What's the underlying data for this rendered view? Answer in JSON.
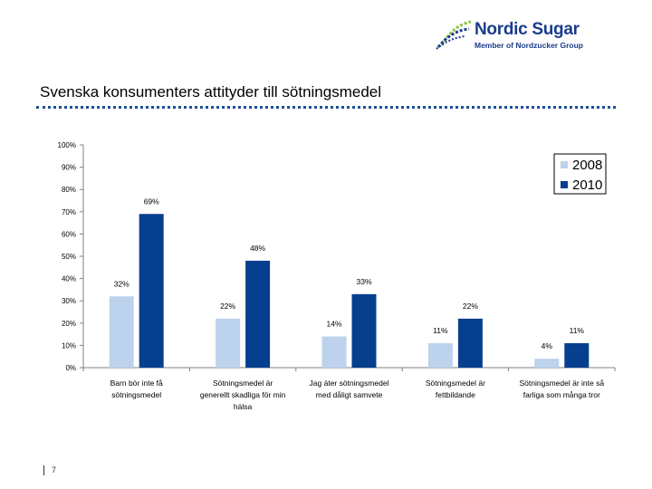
{
  "brand": {
    "name": "Nordic Sugar",
    "tagline": "Member of Nordzucker Group",
    "primary_color": "#1a3c8c",
    "accent_color": "#8cc63f"
  },
  "slide": {
    "title": "Svenska konsumenters attityder till sötningsmedel",
    "page_number": "7"
  },
  "chart_data": {
    "type": "bar",
    "title": "",
    "xlabel": "",
    "ylabel": "",
    "ylim": [
      0,
      100
    ],
    "y_ticks": [
      "0%",
      "10%",
      "20%",
      "30%",
      "40%",
      "50%",
      "60%",
      "70%",
      "80%",
      "90%",
      "100%"
    ],
    "categories": [
      [
        "Barn bör inte få",
        "sötningsmedel"
      ],
      [
        "Sötningsmedel är",
        "generellt skadliga för min",
        "hälsa"
      ],
      [
        "Jag äter sötningsmedel",
        "med dåligt samvete"
      ],
      [
        "Sötningsmedel är",
        "fettbildande"
      ],
      [
        "Sötningsmedel är inte så",
        "farliga som många tror"
      ]
    ],
    "series": [
      {
        "name": "2008",
        "color": "#bdd2ec",
        "values": [
          32,
          22,
          14,
          11,
          4
        ],
        "labels": [
          "32%",
          "22%",
          "14%",
          "11%",
          "4%"
        ]
      },
      {
        "name": "2010",
        "color": "#073f8f",
        "values": [
          69,
          48,
          33,
          22,
          11
        ],
        "labels": [
          "69%",
          "48%",
          "33%",
          "22%",
          "11%"
        ]
      }
    ],
    "legend_position": "top-right",
    "grid": false
  }
}
